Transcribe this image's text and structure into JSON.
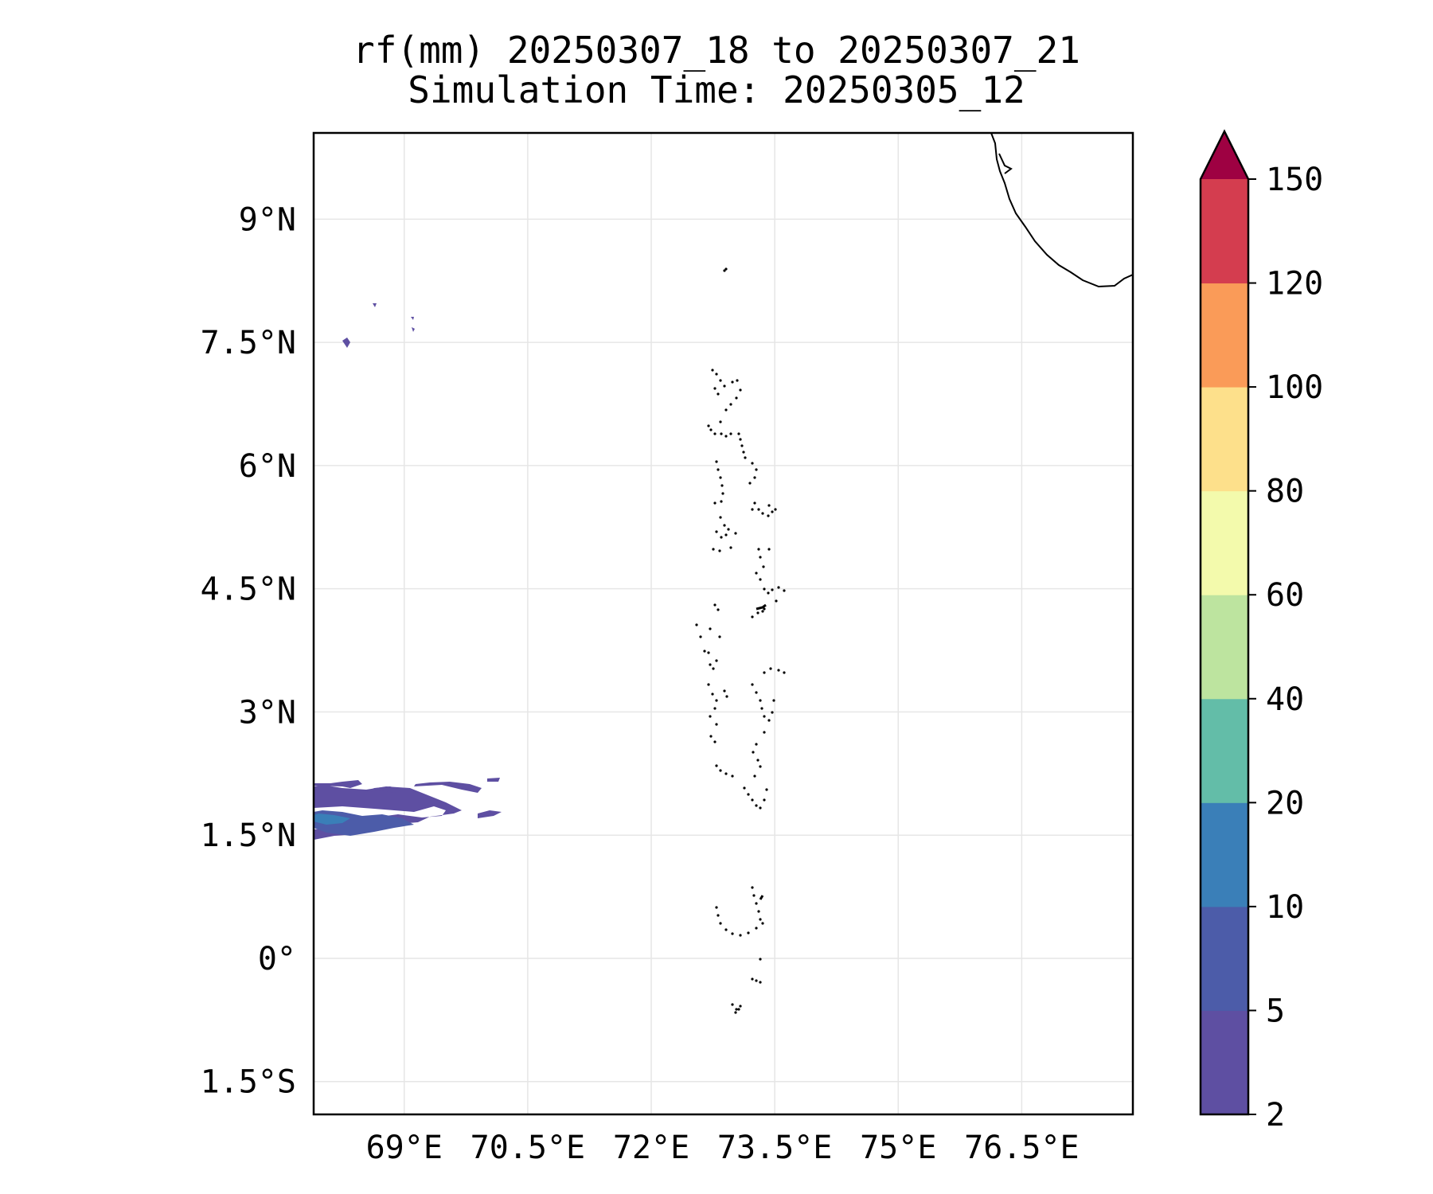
{
  "title": {
    "line1": "rf(mm) 20250307_18 to 20250307_21",
    "line2": "Simulation Time: 20250305_12"
  },
  "map": {
    "lon_range": [
      67.9,
      77.85
    ],
    "lat_range": [
      -1.9,
      10.05
    ],
    "lat_ticks": [
      {
        "value": 9,
        "label": "9°N"
      },
      {
        "value": 7.5,
        "label": "7.5°N"
      },
      {
        "value": 6,
        "label": "6°N"
      },
      {
        "value": 4.5,
        "label": "4.5°N"
      },
      {
        "value": 3,
        "label": "3°N"
      },
      {
        "value": 1.5,
        "label": "1.5°N"
      },
      {
        "value": 0,
        "label": "0°"
      },
      {
        "value": -1.5,
        "label": "1.5°S"
      }
    ],
    "lon_ticks": [
      {
        "value": 69,
        "label": "69°E"
      },
      {
        "value": 70.5,
        "label": "70.5°E"
      },
      {
        "value": 72,
        "label": "72°E"
      },
      {
        "value": 73.5,
        "label": "73.5°E"
      },
      {
        "value": 75,
        "label": "75°E"
      },
      {
        "value": 76.5,
        "label": "76.5°E"
      }
    ],
    "gridlines": true,
    "coastline_color": "#000000",
    "coastline_feature": "Indian mainland coast (top-right)",
    "islands": "Maldives / Lakshadweep atoll outlines"
  },
  "colorbar": {
    "levels": [
      "2",
      "5",
      "10",
      "20",
      "40",
      "60",
      "80",
      "100",
      "120",
      "150"
    ],
    "colors": [
      "#5e4fa2",
      "#4c5ca9",
      "#3a7fb8",
      "#63bda8",
      "#bde49f",
      "#f3faac",
      "#fde08b",
      "#fa9b58",
      "#d43d4f"
    ],
    "extend_color": "#9e0142",
    "extend": "max"
  },
  "chart_data": {
    "type": "heatmap",
    "title": "rf(mm) 20250307_18 to 20250307_21\nSimulation Time: 20250305_12",
    "xlabel": "",
    "ylabel": "",
    "xlim": [
      67.9,
      77.85
    ],
    "ylim": [
      -1.9,
      10.05
    ],
    "variable": "rf(mm)",
    "levels": [
      2,
      5,
      10,
      20,
      40,
      60,
      80,
      100,
      120,
      150
    ],
    "rain_regions": [
      {
        "lon": [
          67.9,
          70.4
        ],
        "lat": [
          1.1,
          2.05
        ],
        "max_level_band": "10-20"
      },
      {
        "lon": [
          68.2,
          68.6
        ],
        "lat": [
          7.35,
          7.5
        ],
        "max_level_band": "2-5"
      },
      {
        "lon": [
          69.0,
          69.2
        ],
        "lat": [
          7.5,
          7.7
        ],
        "max_level_band": "2-5"
      }
    ]
  }
}
